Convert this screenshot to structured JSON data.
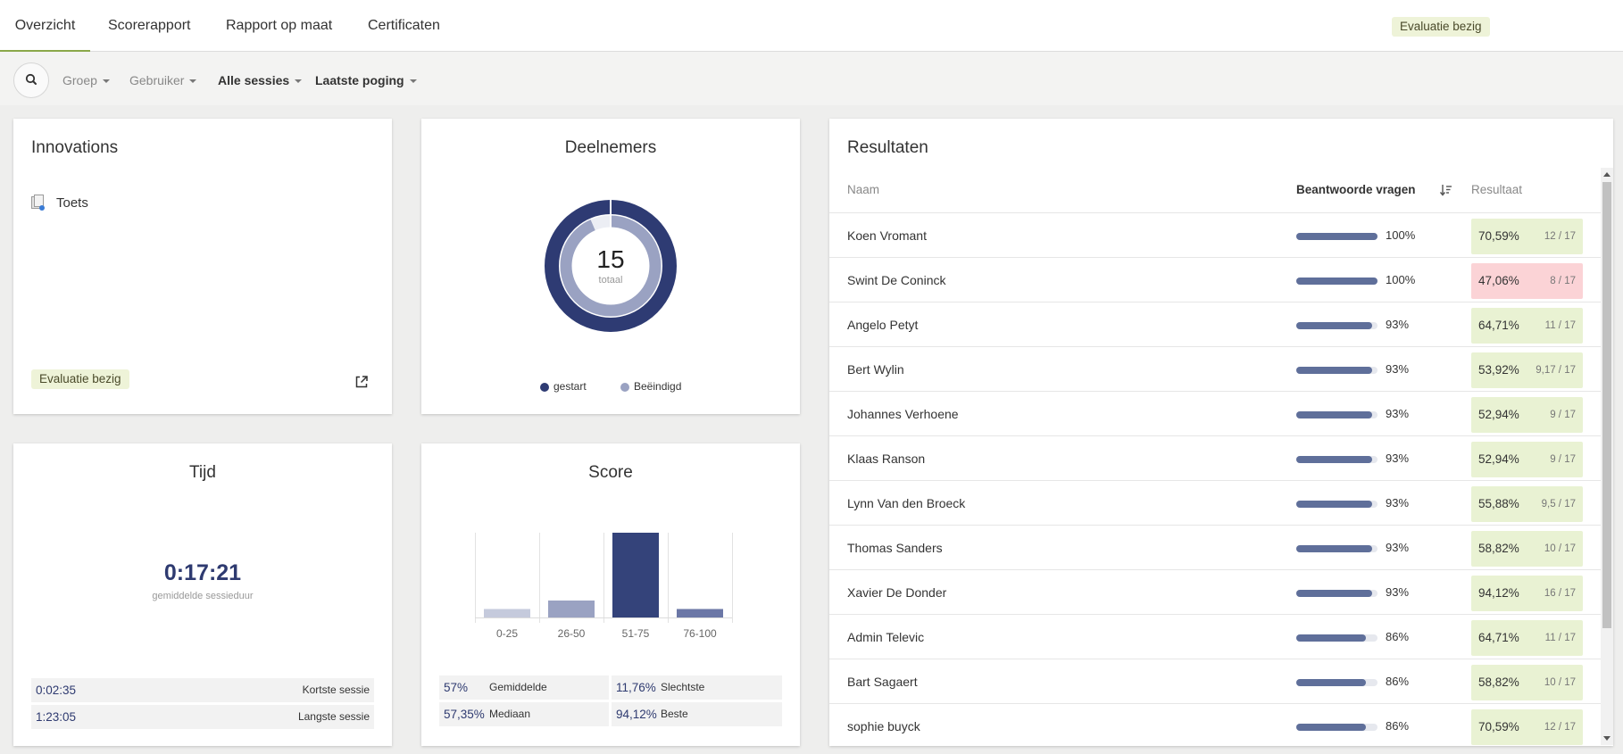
{
  "tabs": [
    {
      "label": "Overzicht",
      "active": true
    },
    {
      "label": "Scorerapport"
    },
    {
      "label": "Rapport op maat"
    },
    {
      "label": "Certificaten"
    }
  ],
  "header_status": "Evaluatie bezig",
  "filters": [
    {
      "label": "Groep"
    },
    {
      "label": "Gebruiker"
    },
    {
      "label": "Alle sessies"
    },
    {
      "label": "Laatste poging"
    }
  ],
  "innovations": {
    "title": "Innovations",
    "item": "Toets",
    "status": "Evaluatie bezig"
  },
  "deelnemers": {
    "title": "Deelnemers",
    "total": "15",
    "total_label": "totaal",
    "legend": [
      {
        "label": "gestart",
        "color": "#2e3b73"
      },
      {
        "label": "Beëindigd",
        "color": "#9aa2c2"
      }
    ],
    "started": 15,
    "finished": 14
  },
  "tijd": {
    "title": "Tijd",
    "average": "0:17:21",
    "average_label": "gemiddelde sessieduur",
    "stats": [
      {
        "value": "0:02:35",
        "label": "Kortste sessie"
      },
      {
        "value": "1:23:05",
        "label": "Langste sessie"
      }
    ]
  },
  "score": {
    "title": "Score",
    "stats": [
      {
        "value": "57%",
        "label": "Gemiddelde"
      },
      {
        "value": "11,76%",
        "label": "Slechtste"
      },
      {
        "value": "57,35%",
        "label": "Mediaan"
      },
      {
        "value": "94,12%",
        "label": "Beste"
      }
    ]
  },
  "chart_data": {
    "type": "bar",
    "categories": [
      "0-25",
      "26-50",
      "51-75",
      "76-100"
    ],
    "values": [
      1,
      2,
      10,
      1
    ],
    "colors": [
      "#c5cadc",
      "#9aa2c2",
      "#34437a",
      "#6b77a6"
    ],
    "title": "Score"
  },
  "resultaten": {
    "title": "Resultaten",
    "headers": {
      "name": "Naam",
      "answered": "Beantwoorde vragen",
      "result": "Resultaat"
    },
    "rows": [
      {
        "name": "Koen Vromant",
        "answered": "100%",
        "answered_value": 1.0,
        "score": "70,59%",
        "fraction": "12 / 17",
        "status": "ok"
      },
      {
        "name": "Swint De Coninck",
        "answered": "100%",
        "answered_value": 1.0,
        "score": "47,06%",
        "fraction": "8 / 17",
        "status": "bad"
      },
      {
        "name": "Angelo Petyt",
        "answered": "93%",
        "answered_value": 0.93,
        "score": "64,71%",
        "fraction": "11 / 17",
        "status": "ok"
      },
      {
        "name": "Bert Wylin",
        "answered": "93%",
        "answered_value": 0.93,
        "score": "53,92%",
        "fraction": "9,17 / 17",
        "status": "ok"
      },
      {
        "name": "Johannes Verhoene",
        "answered": "93%",
        "answered_value": 0.93,
        "score": "52,94%",
        "fraction": "9 / 17",
        "status": "ok"
      },
      {
        "name": "Klaas Ranson",
        "answered": "93%",
        "answered_value": 0.93,
        "score": "52,94%",
        "fraction": "9 / 17",
        "status": "ok"
      },
      {
        "name": "Lynn Van den Broeck",
        "answered": "93%",
        "answered_value": 0.93,
        "score": "55,88%",
        "fraction": "9,5 / 17",
        "status": "ok"
      },
      {
        "name": "Thomas Sanders",
        "answered": "93%",
        "answered_value": 0.93,
        "score": "58,82%",
        "fraction": "10 / 17",
        "status": "ok"
      },
      {
        "name": "Xavier De Donder",
        "answered": "93%",
        "answered_value": 0.93,
        "score": "94,12%",
        "fraction": "16 / 17",
        "status": "ok"
      },
      {
        "name": "Admin Televic",
        "answered": "86%",
        "answered_value": 0.86,
        "score": "64,71%",
        "fraction": "11 / 17",
        "status": "ok"
      },
      {
        "name": "Bart Sagaert",
        "answered": "86%",
        "answered_value": 0.86,
        "score": "58,82%",
        "fraction": "10 / 17",
        "status": "ok"
      },
      {
        "name": "sophie buyck",
        "answered": "86%",
        "answered_value": 0.86,
        "score": "70,59%",
        "fraction": "12 / 17",
        "status": "ok"
      }
    ]
  }
}
